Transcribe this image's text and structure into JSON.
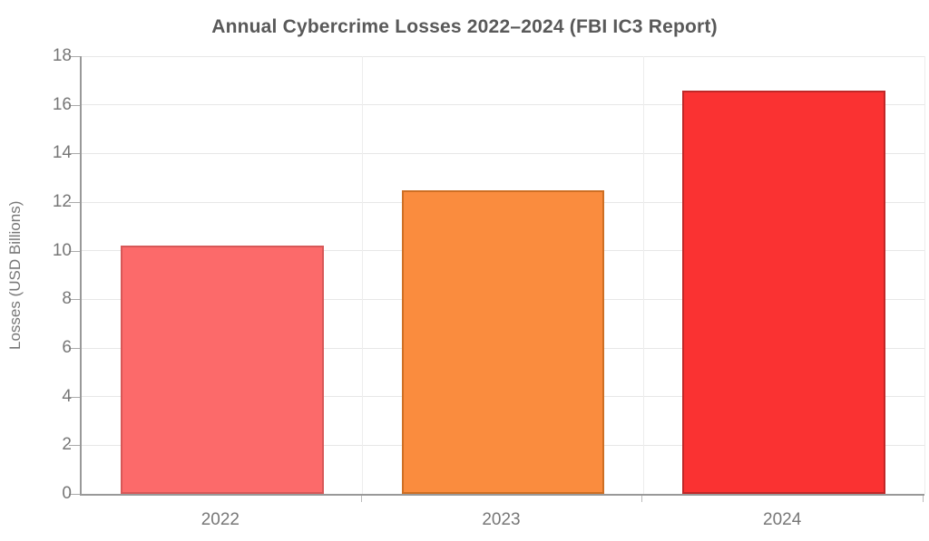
{
  "chart_data": {
    "type": "bar",
    "title": "Annual Cybercrime Losses 2022–2024 (FBI IC3 Report)",
    "subtitle": "",
    "xlabel": "",
    "ylabel": "Losses (USD Billions)",
    "categories": [
      "2022",
      "2023",
      "2024"
    ],
    "values": [
      10.2,
      12.5,
      16.6
    ],
    "series": [
      {
        "name": "Losses (USD Billions)",
        "values": [
          10.2,
          12.5,
          16.6
        ]
      }
    ],
    "yticks": [
      0,
      2,
      4,
      6,
      8,
      10,
      12,
      14,
      16,
      18
    ],
    "ylim": [
      0,
      18
    ],
    "grid": true,
    "legend_position": "none",
    "bar_fill_colors": [
      "#fc6a6a",
      "#fa8c3e",
      "#fa3232"
    ],
    "bar_border_colors": [
      "#d75858",
      "#ce6f24",
      "#c02828"
    ]
  },
  "palette": {
    "background": "#ffffff",
    "title_color": "#595959",
    "tick_label_color": "#777777",
    "axis_color": "#999999",
    "h_gridline_color": "#e7e7e7",
    "v_gridline_color": "#ededed"
  }
}
